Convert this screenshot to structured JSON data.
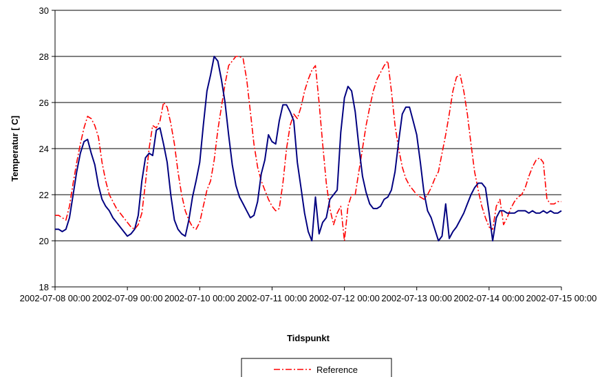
{
  "chart_data": {
    "type": "line",
    "xlabel": "Tidspunkt",
    "ylabel": "Temperatur [ C]",
    "ylim": [
      18,
      30
    ],
    "y_ticks": [
      "18",
      "20",
      "22",
      "24",
      "26",
      "28",
      "30"
    ],
    "x_ticks": [
      "2002-07-08 00:00",
      "2002-07-09 00:00",
      "2002-07-10 00:00",
      "2002-07-11 00:00",
      "2002-07-12 00:00",
      "2002-07-13 00:00",
      "2002-07-14 00:00",
      "2002-07-15 00:00"
    ],
    "xlim_days": [
      0,
      7
    ],
    "grid": "horizontal",
    "legend": {
      "placement": "bottom",
      "entries": [
        "Reference"
      ]
    },
    "colors": {
      "reference": "#ff0000",
      "measured": "#000080",
      "grid": "#000000"
    },
    "series": [
      {
        "name": "Reference",
        "style": "dash-dot",
        "x_days": [
          0.0,
          0.05,
          0.1,
          0.15,
          0.2,
          0.25,
          0.3,
          0.35,
          0.4,
          0.45,
          0.5,
          0.55,
          0.6,
          0.65,
          0.7,
          0.75,
          0.8,
          0.85,
          0.9,
          0.95,
          1.0,
          1.05,
          1.1,
          1.15,
          1.2,
          1.25,
          1.3,
          1.35,
          1.4,
          1.45,
          1.5,
          1.55,
          1.6,
          1.65,
          1.7,
          1.75,
          1.8,
          1.85,
          1.9,
          1.95,
          2.0,
          2.05,
          2.1,
          2.15,
          2.2,
          2.25,
          2.3,
          2.35,
          2.4,
          2.45,
          2.5,
          2.55,
          2.6,
          2.65,
          2.7,
          2.75,
          2.8,
          2.85,
          2.9,
          2.95,
          3.0,
          3.05,
          3.1,
          3.15,
          3.2,
          3.25,
          3.3,
          3.35,
          3.4,
          3.45,
          3.5,
          3.55,
          3.6,
          3.65,
          3.7,
          3.75,
          3.8,
          3.85,
          3.9,
          3.95,
          4.0,
          4.05,
          4.1,
          4.15,
          4.2,
          4.25,
          4.3,
          4.35,
          4.4,
          4.45,
          4.5,
          4.55,
          4.6,
          4.65,
          4.7,
          4.75,
          4.8,
          4.85,
          4.9,
          4.95,
          5.0,
          5.05,
          5.1,
          5.15,
          5.2,
          5.25,
          5.3,
          5.35,
          5.4,
          5.45,
          5.5,
          5.55,
          5.6,
          5.65,
          5.7,
          5.75,
          5.8,
          5.85,
          5.9,
          5.95,
          6.0,
          6.05,
          6.1,
          6.15,
          6.2,
          6.25,
          6.3,
          6.35,
          6.4,
          6.45,
          6.5,
          6.55,
          6.6,
          6.65,
          6.7,
          6.75,
          6.8,
          6.85,
          6.9,
          6.95,
          7.0
        ],
        "values": [
          21.1,
          21.1,
          21.0,
          20.9,
          21.5,
          22.5,
          23.4,
          24.2,
          24.9,
          25.4,
          25.3,
          25.0,
          24.5,
          23.4,
          22.6,
          22.0,
          21.7,
          21.4,
          21.2,
          21.0,
          20.8,
          20.6,
          20.5,
          20.7,
          21.2,
          22.5,
          24.0,
          25.0,
          24.9,
          25.2,
          26.0,
          25.8,
          25.1,
          24.2,
          23.0,
          22.0,
          21.3,
          20.9,
          20.6,
          20.5,
          20.8,
          21.5,
          22.2,
          22.6,
          23.5,
          24.8,
          25.8,
          26.8,
          27.6,
          27.8,
          28.0,
          28.0,
          27.9,
          27.0,
          25.6,
          24.2,
          23.2,
          22.6,
          22.2,
          21.8,
          21.5,
          21.3,
          21.4,
          22.5,
          24.0,
          25.0,
          25.5,
          25.3,
          25.8,
          26.5,
          27.0,
          27.4,
          27.6,
          26.0,
          24.2,
          22.5,
          21.4,
          20.7,
          21.2,
          21.5,
          20.0,
          21.5,
          22.0,
          22.0,
          23.0,
          24.0,
          25.0,
          25.8,
          26.5,
          27.0,
          27.3,
          27.6,
          27.8,
          26.5,
          25.0,
          24.0,
          23.2,
          22.7,
          22.4,
          22.2,
          22.0,
          21.9,
          21.8,
          22.0,
          22.3,
          22.7,
          23.0,
          23.8,
          24.6,
          25.5,
          26.5,
          27.1,
          27.2,
          26.5,
          25.5,
          24.2,
          23.0,
          22.2,
          21.5,
          21.0,
          20.6,
          20.5,
          21.5,
          21.8,
          20.7,
          21.0,
          21.4,
          21.7,
          21.9,
          22.0,
          22.3,
          22.8,
          23.2,
          23.5,
          23.6,
          23.4,
          21.8,
          21.6,
          21.6,
          21.7,
          21.7
        ]
      },
      {
        "name": "",
        "style": "solid",
        "x_days": [
          0.0,
          0.05,
          0.1,
          0.15,
          0.2,
          0.25,
          0.3,
          0.35,
          0.4,
          0.45,
          0.5,
          0.55,
          0.6,
          0.65,
          0.7,
          0.75,
          0.8,
          0.85,
          0.9,
          0.95,
          1.0,
          1.05,
          1.1,
          1.15,
          1.2,
          1.25,
          1.3,
          1.35,
          1.4,
          1.45,
          1.5,
          1.55,
          1.6,
          1.65,
          1.7,
          1.75,
          1.8,
          1.85,
          1.9,
          1.95,
          2.0,
          2.05,
          2.1,
          2.15,
          2.2,
          2.25,
          2.3,
          2.35,
          2.4,
          2.45,
          2.5,
          2.55,
          2.6,
          2.65,
          2.7,
          2.75,
          2.8,
          2.85,
          2.9,
          2.95,
          3.0,
          3.05,
          3.1,
          3.15,
          3.2,
          3.25,
          3.3,
          3.35,
          3.4,
          3.45,
          3.5,
          3.55,
          3.6,
          3.65,
          3.7,
          3.75,
          3.8,
          3.85,
          3.9,
          3.95,
          4.0,
          4.05,
          4.1,
          4.15,
          4.2,
          4.25,
          4.3,
          4.35,
          4.4,
          4.45,
          4.5,
          4.55,
          4.6,
          4.65,
          4.7,
          4.75,
          4.8,
          4.85,
          4.9,
          4.95,
          5.0,
          5.05,
          5.1,
          5.15,
          5.2,
          5.25,
          5.3,
          5.35,
          5.4,
          5.45,
          5.5,
          5.55,
          5.6,
          5.65,
          5.7,
          5.75,
          5.8,
          5.85,
          5.9,
          5.95,
          6.0,
          6.05,
          6.1,
          6.15,
          6.2,
          6.25,
          6.3,
          6.35,
          6.4,
          6.45,
          6.5,
          6.55,
          6.6,
          6.65,
          6.7,
          6.75,
          6.8,
          6.85,
          6.9,
          6.95,
          7.0
        ],
        "values": [
          20.5,
          20.5,
          20.4,
          20.5,
          21.0,
          22.0,
          23.0,
          23.8,
          24.3,
          24.4,
          23.8,
          23.3,
          22.4,
          21.8,
          21.5,
          21.3,
          21.0,
          20.8,
          20.6,
          20.4,
          20.2,
          20.3,
          20.5,
          21.1,
          22.6,
          23.6,
          23.8,
          23.7,
          24.8,
          24.9,
          24.2,
          23.4,
          22.0,
          20.9,
          20.5,
          20.3,
          20.2,
          20.9,
          21.9,
          22.6,
          23.4,
          25.0,
          26.5,
          27.2,
          28.0,
          27.8,
          27.0,
          26.0,
          24.6,
          23.3,
          22.4,
          21.9,
          21.6,
          21.3,
          21.0,
          21.1,
          21.7,
          22.9,
          23.5,
          24.6,
          24.3,
          24.2,
          25.2,
          25.9,
          25.9,
          25.6,
          25.2,
          23.4,
          22.3,
          21.2,
          20.4,
          20.0,
          21.9,
          20.3,
          20.8,
          21.0,
          21.8,
          22.0,
          22.2,
          24.7,
          26.2,
          26.7,
          26.5,
          25.6,
          24.1,
          22.8,
          22.1,
          21.6,
          21.4,
          21.4,
          21.5,
          21.8,
          21.9,
          22.2,
          23.0,
          24.3,
          25.5,
          25.8,
          25.8,
          25.2,
          24.6,
          23.4,
          22.1,
          21.3,
          21.0,
          20.5,
          20.0,
          20.2,
          21.6,
          20.1,
          20.4,
          20.6,
          20.9,
          21.2,
          21.6,
          22.0,
          22.3,
          22.5,
          22.5,
          22.3,
          21.2,
          20.0,
          21.0,
          21.3,
          21.3,
          21.2,
          21.2,
          21.2,
          21.3,
          21.3,
          21.3,
          21.2,
          21.3,
          21.2,
          21.2,
          21.3,
          21.2,
          21.3,
          21.2,
          21.2,
          21.3
        ]
      }
    ]
  }
}
